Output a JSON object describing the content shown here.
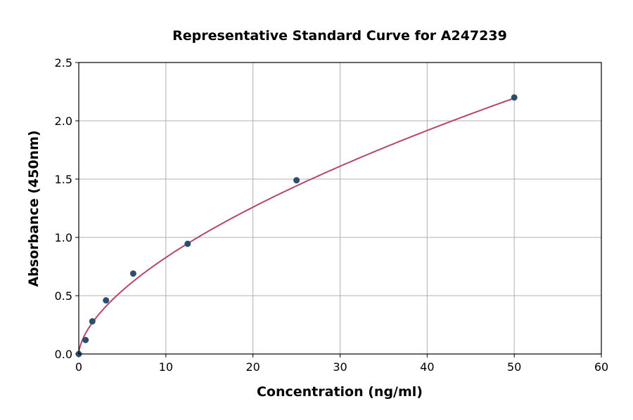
{
  "chart_data": {
    "type": "scatter",
    "title": "Representative Standard Curve for A247239",
    "xlabel": "Concentration (ng/ml)",
    "ylabel": "Absorbance (450nm)",
    "xlim": [
      0,
      60
    ],
    "ylim": [
      0,
      2.5
    ],
    "xticks": [
      "0",
      "10",
      "20",
      "30",
      "40",
      "50",
      "60"
    ],
    "yticks": [
      "0.0",
      "0.5",
      "1.0",
      "1.5",
      "2.0",
      "2.5"
    ],
    "grid": true,
    "x": [
      0,
      0.78,
      1.56,
      3.125,
      6.25,
      12.5,
      25,
      50
    ],
    "y": [
      0.0,
      0.12,
      0.28,
      0.46,
      0.69,
      0.945,
      1.49,
      2.2
    ],
    "fit_curve": "smooth fitted curve through points",
    "colors": {
      "points": "#2e4d6e",
      "curve": "#b5466b",
      "grid": "#b0b0b0"
    }
  }
}
